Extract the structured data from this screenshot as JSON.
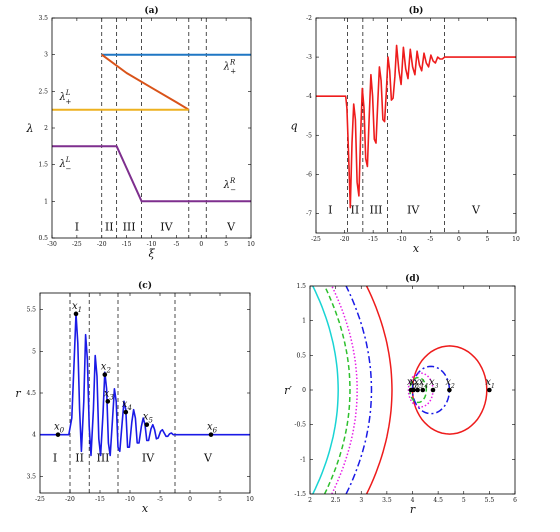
{
  "chart_data": [
    {
      "panel": "a",
      "type": "line",
      "title": "(a)",
      "xlabel": "ξ",
      "ylabel": "λ",
      "xlim": [
        -30,
        10
      ],
      "ylim": [
        0.5,
        3.5
      ],
      "xticks": [
        "-30",
        "-25",
        "-20",
        "-15",
        "-10",
        "-5",
        "0",
        "5",
        "10"
      ],
      "yticks": [
        "0.5",
        "1",
        "1.5",
        "2",
        "2.5",
        "3",
        "3.5"
      ],
      "regions": [
        "I",
        "II",
        "III",
        "IV",
        "V"
      ],
      "dashed_x": [
        -20,
        -17,
        -12,
        -2.5,
        1
      ],
      "region_x": [
        -25,
        -18.5,
        -14.5,
        -7,
        6
      ],
      "region_y": 0.6,
      "series": [
        {
          "color": "#1f77c4",
          "points": [
            [
              -20,
              3
            ],
            [
              10,
              3
            ]
          ]
        },
        {
          "color": "#d95319",
          "points": [
            [
              -20,
              3
            ],
            [
              -15,
              2.75
            ],
            [
              -10,
              2.55
            ],
            [
              -5,
              2.35
            ],
            [
              -2.5,
              2.25
            ]
          ]
        },
        {
          "color": "#edb120",
          "points": [
            [
              -30,
              2.25
            ],
            [
              -2.5,
              2.25
            ]
          ]
        },
        {
          "color": "#7e2f8e",
          "points": [
            [
              -30,
              1.75
            ],
            [
              -17,
              1.75
            ],
            [
              -12,
              1
            ],
            [
              10,
              1
            ]
          ]
        }
      ],
      "annotations": [
        {
          "text": "λ",
          "sup": "L",
          "sub": "+",
          "x": -28.5,
          "y": 2.38
        },
        {
          "text": "λ",
          "sup": "L",
          "sub": "−",
          "x": -28.5,
          "y": 1.47
        },
        {
          "text": "λ",
          "sup": "R",
          "sub": "+",
          "x": 4.5,
          "y": 2.8
        },
        {
          "text": "λ",
          "sup": "R",
          "sub": "−",
          "x": 4.5,
          "y": 1.18
        }
      ]
    },
    {
      "panel": "b",
      "type": "line",
      "title": "(b)",
      "xlabel": "x",
      "ylabel": "q",
      "xlim": [
        -25,
        10
      ],
      "ylim": [
        -7.5,
        -2
      ],
      "xticks": [
        "-25",
        "-20",
        "-15",
        "-10",
        "-5",
        "0",
        "5",
        "10"
      ],
      "yticks": [
        "-7",
        "-6",
        "-5",
        "-4",
        "-3",
        "-2"
      ],
      "regions": [
        "I",
        "II",
        "III",
        "IV",
        "V"
      ],
      "dashed_x": [
        -19.5,
        -16.8,
        -12.5,
        -2.5
      ],
      "region_x": [
        -22.5,
        -18.2,
        -14.5,
        -8,
        3
      ],
      "region_y": -7,
      "series": [
        {
          "color": "#ee1c1c",
          "points": [
            [
              -25,
              -4
            ],
            [
              -19.8,
              -4
            ],
            [
              -19.6,
              -4.3
            ],
            [
              -19.3,
              -5.5
            ],
            [
              -19.0,
              -6.85
            ],
            [
              -18.7,
              -5.2
            ],
            [
              -18.4,
              -4.2
            ],
            [
              -18.1,
              -4.6
            ],
            [
              -17.8,
              -6.2
            ],
            [
              -17.5,
              -6.55
            ],
            [
              -17.2,
              -5.0
            ],
            [
              -16.9,
              -3.8
            ],
            [
              -16.6,
              -4.3
            ],
            [
              -16.3,
              -5.6
            ],
            [
              -16.0,
              -5.8
            ],
            [
              -15.7,
              -4.6
            ],
            [
              -15.4,
              -3.45
            ],
            [
              -15.1,
              -4.0
            ],
            [
              -14.8,
              -5.1
            ],
            [
              -14.5,
              -5.2
            ],
            [
              -14.2,
              -4.2
            ],
            [
              -13.9,
              -3.25
            ],
            [
              -13.6,
              -3.6
            ],
            [
              -13.3,
              -4.6
            ],
            [
              -13.0,
              -4.65
            ],
            [
              -12.7,
              -3.9
            ],
            [
              -12.4,
              -3.0
            ],
            [
              -12.1,
              -3.35
            ],
            [
              -11.8,
              -4.1
            ],
            [
              -11.5,
              -4.05
            ],
            [
              -11.2,
              -3.5
            ],
            [
              -10.9,
              -2.7
            ],
            [
              -10.5,
              -3.35
            ],
            [
              -10.1,
              -3.7
            ],
            [
              -9.7,
              -2.75
            ],
            [
              -9.3,
              -3.3
            ],
            [
              -8.9,
              -3.55
            ],
            [
              -8.5,
              -2.8
            ],
            [
              -8.1,
              -3.25
            ],
            [
              -7.7,
              -3.45
            ],
            [
              -7.3,
              -2.85
            ],
            [
              -6.9,
              -3.2
            ],
            [
              -6.5,
              -3.35
            ],
            [
              -6.1,
              -2.9
            ],
            [
              -5.7,
              -3.15
            ],
            [
              -5.3,
              -3.25
            ],
            [
              -4.9,
              -2.95
            ],
            [
              -4.5,
              -3.1
            ],
            [
              -4.1,
              -3.15
            ],
            [
              -3.7,
              -3.0
            ],
            [
              -3.3,
              -3.05
            ],
            [
              -2.9,
              -3.05
            ],
            [
              -2.5,
              -3.0
            ],
            [
              10,
              -3.0
            ]
          ]
        }
      ]
    },
    {
      "panel": "c",
      "type": "line",
      "title": "(c)",
      "xlabel": "x",
      "ylabel": "r",
      "xlim": [
        -25,
        10
      ],
      "ylim": [
        3.3,
        5.7
      ],
      "xticks": [
        "-25",
        "-20",
        "-15",
        "-10",
        "-5",
        "0",
        "5",
        "10"
      ],
      "yticks": [
        "3.5",
        "4",
        "4.5",
        "5",
        "5.5"
      ],
      "regions": [
        "I",
        "II",
        "III",
        "IV",
        "V"
      ],
      "dashed_x": [
        -20,
        -16.8,
        -12,
        -2.5
      ],
      "region_x": [
        -22.5,
        -18.4,
        -14.5,
        -7,
        3
      ],
      "region_y": 3.68,
      "series": [
        {
          "color": "#1a1ae6",
          "points": [
            [
              -25,
              4
            ],
            [
              -20.2,
              4
            ],
            [
              -19.7,
              4.2
            ],
            [
              -19.3,
              4.9
            ],
            [
              -19.0,
              5.45
            ],
            [
              -18.7,
              5.1
            ],
            [
              -18.4,
              4.3
            ],
            [
              -18.1,
              3.8
            ],
            [
              -17.7,
              4.4
            ],
            [
              -17.4,
              5.2
            ],
            [
              -17.1,
              4.9
            ],
            [
              -16.8,
              4.1
            ],
            [
              -16.5,
              3.75
            ],
            [
              -16.1,
              4.3
            ],
            [
              -15.8,
              4.95
            ],
            [
              -15.5,
              4.7
            ],
            [
              -15.2,
              3.95
            ],
            [
              -14.9,
              3.75
            ],
            [
              -14.5,
              4.25
            ],
            [
              -14.2,
              4.75
            ],
            [
              -13.9,
              4.55
            ],
            [
              -13.6,
              3.9
            ],
            [
              -13.3,
              3.75
            ],
            [
              -12.9,
              4.2
            ],
            [
              -12.6,
              4.55
            ],
            [
              -12.3,
              4.4
            ],
            [
              -12.0,
              3.85
            ],
            [
              -11.7,
              3.8
            ],
            [
              -11.3,
              4.15
            ],
            [
              -11.0,
              4.4
            ],
            [
              -10.7,
              4.3
            ],
            [
              -10.4,
              3.85
            ],
            [
              -10.1,
              3.85
            ],
            [
              -9.7,
              4.15
            ],
            [
              -9.4,
              4.3
            ],
            [
              -9.1,
              4.2
            ],
            [
              -8.8,
              3.9
            ],
            [
              -8.5,
              3.9
            ],
            [
              -8.1,
              4.1
            ],
            [
              -7.8,
              4.2
            ],
            [
              -7.5,
              4.12
            ],
            [
              -7.2,
              3.93
            ],
            [
              -6.9,
              3.93
            ],
            [
              -6.5,
              4.07
            ],
            [
              -6.2,
              4.12
            ],
            [
              -5.9,
              4.06
            ],
            [
              -5.6,
              3.95
            ],
            [
              -5.3,
              3.96
            ],
            [
              -4.9,
              4.04
            ],
            [
              -4.6,
              4.06
            ],
            [
              -4.3,
              4.02
            ],
            [
              -4.0,
              3.98
            ],
            [
              -3.7,
              3.98
            ],
            [
              -3.4,
              4.01
            ],
            [
              -3.1,
              4.02
            ],
            [
              -2.8,
              4.0
            ],
            [
              -2.5,
              4.0
            ],
            [
              10,
              4
            ]
          ]
        }
      ],
      "markers": [
        {
          "label": "x",
          "sub": "0",
          "x": -22,
          "y": 4.0
        },
        {
          "label": "x",
          "sub": "1",
          "x": -19,
          "y": 5.45
        },
        {
          "label": "x",
          "sub": "2",
          "x": -14.2,
          "y": 4.72
        },
        {
          "label": "x",
          "sub": "3",
          "x": -13.7,
          "y": 4.4
        },
        {
          "label": "x",
          "sub": "4",
          "x": -10.7,
          "y": 4.27
        },
        {
          "label": "x",
          "sub": "5",
          "x": -7.2,
          "y": 4.12
        },
        {
          "label": "x",
          "sub": "6",
          "x": 3.5,
          "y": 4.0
        }
      ]
    },
    {
      "panel": "d",
      "type": "scatter",
      "title": "(d)",
      "xlabel": "r",
      "ylabel": "r′",
      "xlim": [
        2,
        6
      ],
      "ylim": [
        -1.5,
        1.5
      ],
      "xticks": [
        "2",
        "2.5",
        "3",
        "3.5",
        "4",
        "4.5",
        "5",
        "5.5",
        "6"
      ],
      "yticks": [
        "-1.5",
        "-1",
        "-0.5",
        "0",
        "0.5",
        "1",
        "1.5"
      ],
      "curves": [
        {
          "color": "#ee1c1c",
          "style": "solid",
          "kind": "loop",
          "x_left": 4.0,
          "x_right": 5.45
        },
        {
          "color": "#ee1c1c",
          "style": "solid",
          "kind": "open",
          "x_vertex": 3.6
        },
        {
          "color": "#1a1ae6",
          "style": "dashdot",
          "kind": "loop",
          "x_left": 4.0,
          "x_right": 4.72
        },
        {
          "color": "#1a1ae6",
          "style": "dashdot",
          "kind": "open",
          "x_vertex": 3.2
        },
        {
          "color": "#e61ee6",
          "style": "dotted",
          "kind": "loop",
          "x_left": 3.92,
          "x_right": 4.4
        },
        {
          "color": "#e61ee6",
          "style": "dotted",
          "kind": "open",
          "x_vertex": 2.92
        },
        {
          "color": "#2ec02e",
          "style": "dashed",
          "kind": "loop",
          "x_left": 3.95,
          "x_right": 4.27
        },
        {
          "color": "#2ec02e",
          "style": "dashed",
          "kind": "open",
          "x_vertex": 2.78
        },
        {
          "color": "#19d4d4",
          "style": "solid",
          "kind": "open",
          "x_vertex": 2.55
        }
      ],
      "points": [
        {
          "label": "x",
          "sub": "1",
          "x": 5.5,
          "y": 0
        },
        {
          "label": "x",
          "sub": "2",
          "x": 4.72,
          "y": 0
        },
        {
          "label": "x",
          "sub": "3",
          "x": 4.4,
          "y": 0
        },
        {
          "label": "x",
          "sub": "4",
          "x": 4.2,
          "y": 0
        },
        {
          "label": "x",
          "sub": "5",
          "x": 4.1,
          "y": 0
        },
        {
          "label": "x",
          "sub": "6",
          "x": 4.02,
          "y": 0
        },
        {
          "label": "x",
          "sub": "0",
          "x": 3.97,
          "y": 0
        }
      ]
    }
  ]
}
